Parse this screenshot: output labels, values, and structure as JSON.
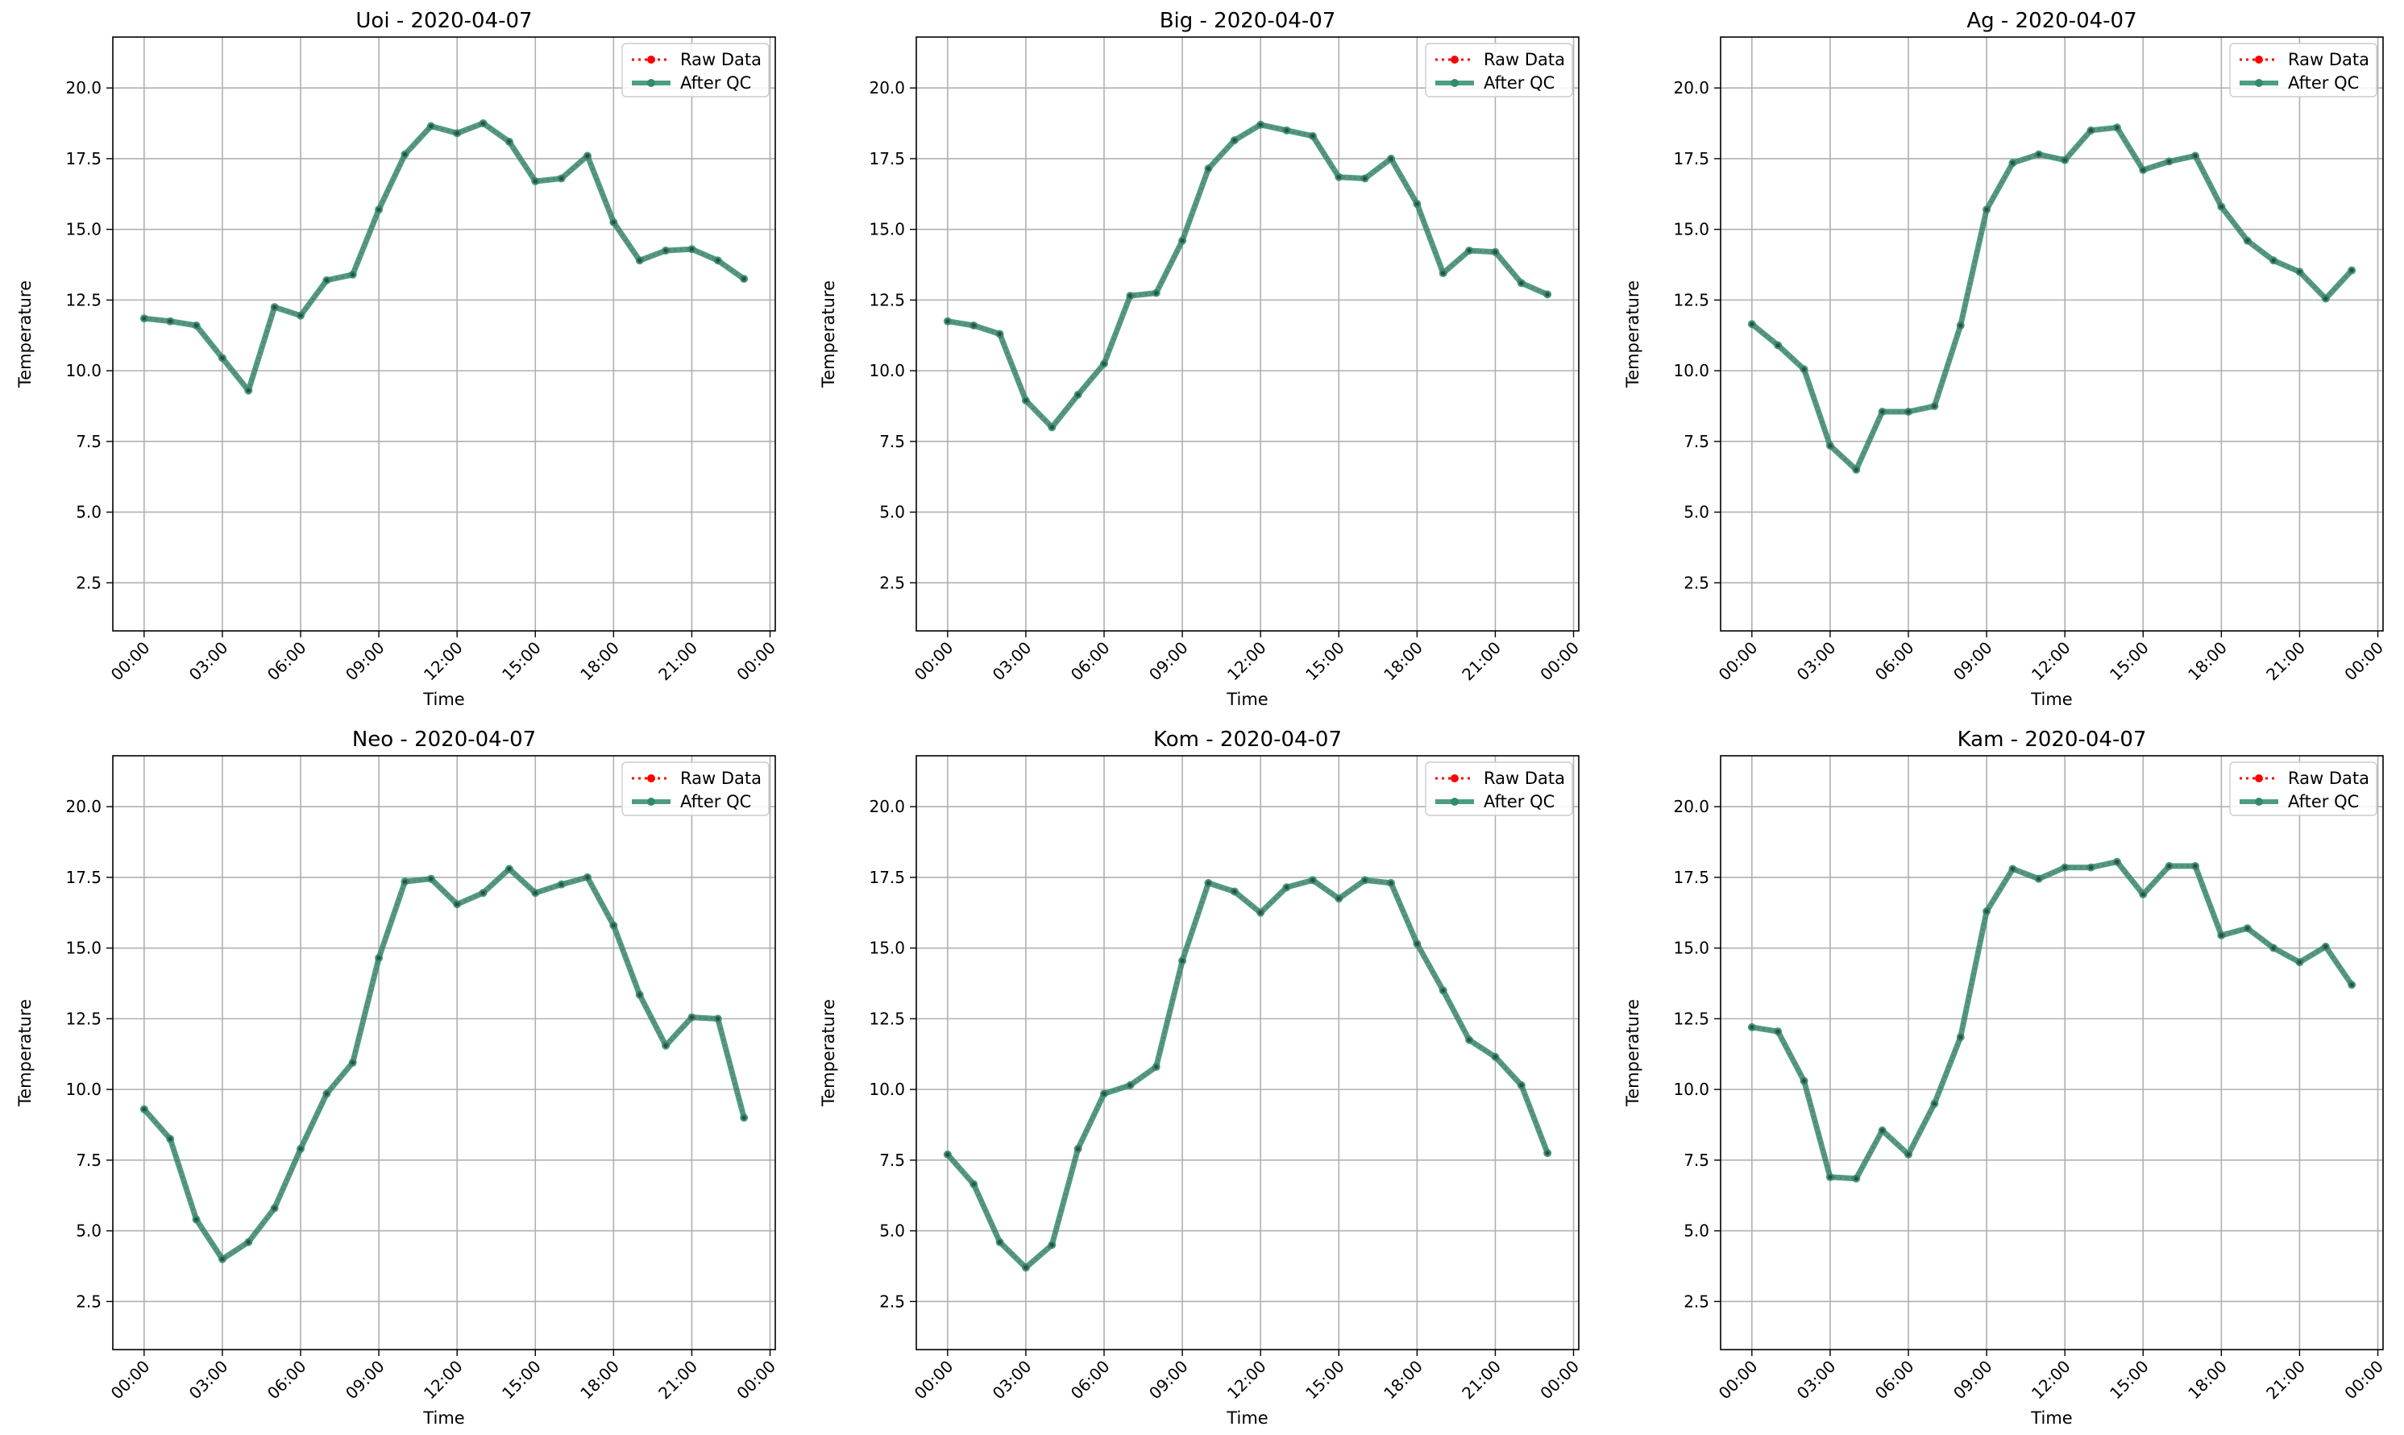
{
  "figure": {
    "colors": {
      "raw": "#ff0000",
      "qc": "#2e8b6f",
      "grid": "#b0b0b0",
      "axes": "#000000",
      "background": "#ffffff"
    }
  },
  "chart_data": [
    {
      "type": "line",
      "title": "Uoi - 2020-04-07",
      "xlabel": "Time",
      "ylabel": "Temperature",
      "ylim": [
        0.8,
        21.8
      ],
      "yticks": [
        2.5,
        5.0,
        7.5,
        10.0,
        12.5,
        15.0,
        17.5,
        20.0
      ],
      "xlim_hours": [
        -1.2,
        24.2
      ],
      "xticks": [
        "00:00",
        "03:00",
        "06:00",
        "09:00",
        "12:00",
        "15:00",
        "18:00",
        "21:00",
        "00:00"
      ],
      "grid": true,
      "legend": {
        "placement": "top-right",
        "entries": [
          "Raw Data",
          "After QC"
        ]
      },
      "x": [
        "00:00",
        "01:00",
        "02:00",
        "03:00",
        "04:00",
        "05:00",
        "06:00",
        "07:00",
        "08:00",
        "09:00",
        "10:00",
        "11:00",
        "12:00",
        "13:00",
        "14:00",
        "15:00",
        "16:00",
        "17:00",
        "18:00",
        "19:00",
        "20:00",
        "21:00",
        "22:00",
        "23:00"
      ],
      "series": [
        {
          "name": "Raw Data",
          "style": "dotted-marker",
          "values": [
            11.85,
            11.75,
            11.6,
            10.45,
            9.3,
            12.25,
            11.95,
            13.2,
            13.4,
            15.7,
            17.65,
            18.65,
            18.4,
            18.75,
            18.1,
            16.7,
            16.8,
            17.6,
            15.25,
            13.9,
            14.25,
            14.3,
            13.9,
            13.25
          ]
        },
        {
          "name": "After QC",
          "style": "solid-marker",
          "values": [
            11.85,
            11.75,
            11.6,
            10.45,
            9.3,
            12.25,
            11.95,
            13.2,
            13.4,
            15.7,
            17.65,
            18.65,
            18.4,
            18.75,
            18.1,
            16.7,
            16.8,
            17.6,
            15.25,
            13.9,
            14.25,
            14.3,
            13.9,
            13.25
          ]
        }
      ]
    },
    {
      "type": "line",
      "title": "Big - 2020-04-07",
      "xlabel": "Time",
      "ylabel": "Temperature",
      "ylim": [
        0.8,
        21.8
      ],
      "yticks": [
        2.5,
        5.0,
        7.5,
        10.0,
        12.5,
        15.0,
        17.5,
        20.0
      ],
      "xlim_hours": [
        -1.2,
        24.2
      ],
      "xticks": [
        "00:00",
        "03:00",
        "06:00",
        "09:00",
        "12:00",
        "15:00",
        "18:00",
        "21:00",
        "00:00"
      ],
      "grid": true,
      "legend": {
        "placement": "top-right",
        "entries": [
          "Raw Data",
          "After QC"
        ]
      },
      "x": [
        "00:00",
        "01:00",
        "02:00",
        "03:00",
        "04:00",
        "05:00",
        "06:00",
        "07:00",
        "08:00",
        "09:00",
        "10:00",
        "11:00",
        "12:00",
        "13:00",
        "14:00",
        "15:00",
        "16:00",
        "17:00",
        "18:00",
        "19:00",
        "20:00",
        "21:00",
        "22:00",
        "23:00"
      ],
      "series": [
        {
          "name": "Raw Data",
          "style": "dotted-marker",
          "values": [
            11.75,
            11.6,
            11.3,
            8.95,
            8.0,
            9.15,
            10.25,
            12.65,
            12.75,
            14.6,
            17.15,
            18.15,
            18.7,
            18.5,
            18.3,
            16.85,
            16.8,
            17.5,
            15.9,
            13.45,
            14.25,
            14.2,
            13.1,
            12.7
          ]
        },
        {
          "name": "After QC",
          "style": "solid-marker",
          "values": [
            11.75,
            11.6,
            11.3,
            8.95,
            8.0,
            9.15,
            10.25,
            12.65,
            12.75,
            14.6,
            17.15,
            18.15,
            18.7,
            18.5,
            18.3,
            16.85,
            16.8,
            17.5,
            15.9,
            13.45,
            14.25,
            14.2,
            13.1,
            12.7
          ]
        }
      ]
    },
    {
      "type": "line",
      "title": "Ag - 2020-04-07",
      "xlabel": "Time",
      "ylabel": "Temperature",
      "ylim": [
        0.8,
        21.8
      ],
      "yticks": [
        2.5,
        5.0,
        7.5,
        10.0,
        12.5,
        15.0,
        17.5,
        20.0
      ],
      "xlim_hours": [
        -1.2,
        24.2
      ],
      "xticks": [
        "00:00",
        "03:00",
        "06:00",
        "09:00",
        "12:00",
        "15:00",
        "18:00",
        "21:00",
        "00:00"
      ],
      "grid": true,
      "legend": {
        "placement": "top-right",
        "entries": [
          "Raw Data",
          "After QC"
        ]
      },
      "x": [
        "00:00",
        "01:00",
        "02:00",
        "03:00",
        "04:00",
        "05:00",
        "06:00",
        "07:00",
        "08:00",
        "09:00",
        "10:00",
        "11:00",
        "12:00",
        "13:00",
        "14:00",
        "15:00",
        "16:00",
        "17:00",
        "18:00",
        "19:00",
        "20:00",
        "21:00",
        "22:00",
        "23:00"
      ],
      "series": [
        {
          "name": "Raw Data",
          "style": "dotted-marker",
          "values": [
            11.65,
            10.9,
            10.05,
            7.35,
            6.5,
            8.55,
            8.55,
            8.75,
            11.6,
            15.7,
            17.35,
            17.65,
            17.45,
            18.5,
            18.6,
            17.1,
            17.4,
            17.6,
            15.8,
            14.6,
            13.9,
            13.5,
            12.55,
            13.55
          ]
        },
        {
          "name": "After QC",
          "style": "solid-marker",
          "values": [
            11.65,
            10.9,
            10.05,
            7.35,
            6.5,
            8.55,
            8.55,
            8.75,
            11.6,
            15.7,
            17.35,
            17.65,
            17.45,
            18.5,
            18.6,
            17.1,
            17.4,
            17.6,
            15.8,
            14.6,
            13.9,
            13.5,
            12.55,
            13.55
          ]
        }
      ]
    },
    {
      "type": "line",
      "title": "Neo - 2020-04-07",
      "xlabel": "Time",
      "ylabel": "Temperature",
      "ylim": [
        0.8,
        21.8
      ],
      "yticks": [
        2.5,
        5.0,
        7.5,
        10.0,
        12.5,
        15.0,
        17.5,
        20.0
      ],
      "xlim_hours": [
        -1.2,
        24.2
      ],
      "xticks": [
        "00:00",
        "03:00",
        "06:00",
        "09:00",
        "12:00",
        "15:00",
        "18:00",
        "21:00",
        "00:00"
      ],
      "grid": true,
      "legend": {
        "placement": "top-right",
        "entries": [
          "Raw Data",
          "After QC"
        ]
      },
      "x": [
        "00:00",
        "01:00",
        "02:00",
        "03:00",
        "04:00",
        "05:00",
        "06:00",
        "07:00",
        "08:00",
        "09:00",
        "10:00",
        "11:00",
        "12:00",
        "13:00",
        "14:00",
        "15:00",
        "16:00",
        "17:00",
        "18:00",
        "19:00",
        "20:00",
        "21:00",
        "22:00",
        "23:00"
      ],
      "series": [
        {
          "name": "Raw Data",
          "style": "dotted-marker",
          "values": [
            9.3,
            8.25,
            5.4,
            4.0,
            4.6,
            5.8,
            7.9,
            9.85,
            10.95,
            14.65,
            17.35,
            17.45,
            16.55,
            16.95,
            17.8,
            16.95,
            17.25,
            17.5,
            15.8,
            13.35,
            11.55,
            12.55,
            12.5,
            9.0
          ]
        },
        {
          "name": "After QC",
          "style": "solid-marker",
          "values": [
            9.3,
            8.25,
            5.4,
            4.0,
            4.6,
            5.8,
            7.9,
            9.85,
            10.95,
            14.65,
            17.35,
            17.45,
            16.55,
            16.95,
            17.8,
            16.95,
            17.25,
            17.5,
            15.8,
            13.35,
            11.55,
            12.55,
            12.5,
            9.0
          ]
        }
      ]
    },
    {
      "type": "line",
      "title": "Kom - 2020-04-07",
      "xlabel": "Time",
      "ylabel": "Temperature",
      "ylim": [
        0.8,
        21.8
      ],
      "yticks": [
        2.5,
        5.0,
        7.5,
        10.0,
        12.5,
        15.0,
        17.5,
        20.0
      ],
      "xlim_hours": [
        -1.2,
        24.2
      ],
      "xticks": [
        "00:00",
        "03:00",
        "06:00",
        "09:00",
        "12:00",
        "15:00",
        "18:00",
        "21:00",
        "00:00"
      ],
      "grid": true,
      "legend": {
        "placement": "top-right",
        "entries": [
          "Raw Data",
          "After QC"
        ]
      },
      "x": [
        "00:00",
        "01:00",
        "02:00",
        "03:00",
        "04:00",
        "05:00",
        "06:00",
        "07:00",
        "08:00",
        "09:00",
        "10:00",
        "11:00",
        "12:00",
        "13:00",
        "14:00",
        "15:00",
        "16:00",
        "17:00",
        "18:00",
        "19:00",
        "20:00",
        "21:00",
        "22:00",
        "23:00"
      ],
      "series": [
        {
          "name": "Raw Data",
          "style": "dotted-marker",
          "values": [
            7.7,
            6.65,
            4.6,
            3.7,
            4.5,
            7.9,
            9.85,
            10.15,
            10.8,
            14.55,
            17.3,
            17.0,
            16.25,
            17.15,
            17.4,
            16.75,
            17.4,
            17.3,
            15.15,
            13.5,
            11.75,
            11.15,
            10.15,
            7.75
          ]
        },
        {
          "name": "After QC",
          "style": "solid-marker",
          "values": [
            7.7,
            6.65,
            4.6,
            3.7,
            4.5,
            7.9,
            9.85,
            10.15,
            10.8,
            14.55,
            17.3,
            17.0,
            16.25,
            17.15,
            17.4,
            16.75,
            17.4,
            17.3,
            15.15,
            13.5,
            11.75,
            11.15,
            10.15,
            7.75
          ]
        }
      ]
    },
    {
      "type": "line",
      "title": "Kam - 2020-04-07",
      "xlabel": "Time",
      "ylabel": "Temperature",
      "ylim": [
        0.8,
        21.8
      ],
      "yticks": [
        2.5,
        5.0,
        7.5,
        10.0,
        12.5,
        15.0,
        17.5,
        20.0
      ],
      "xlim_hours": [
        -1.2,
        24.2
      ],
      "xticks": [
        "00:00",
        "03:00",
        "06:00",
        "09:00",
        "12:00",
        "15:00",
        "18:00",
        "21:00",
        "00:00"
      ],
      "grid": true,
      "legend": {
        "placement": "top-right",
        "entries": [
          "Raw Data",
          "After QC"
        ]
      },
      "x": [
        "00:00",
        "01:00",
        "02:00",
        "03:00",
        "04:00",
        "05:00",
        "06:00",
        "07:00",
        "08:00",
        "09:00",
        "10:00",
        "11:00",
        "12:00",
        "13:00",
        "14:00",
        "15:00",
        "16:00",
        "17:00",
        "18:00",
        "19:00",
        "20:00",
        "21:00",
        "22:00",
        "23:00"
      ],
      "series": [
        {
          "name": "Raw Data",
          "style": "dotted-marker",
          "values": [
            12.2,
            12.05,
            10.3,
            6.9,
            6.85,
            8.55,
            7.7,
            9.5,
            11.85,
            16.3,
            17.8,
            17.45,
            17.85,
            17.85,
            18.05,
            16.9,
            17.9,
            17.9,
            15.45,
            15.7,
            15.0,
            14.5,
            15.05,
            13.7
          ]
        },
        {
          "name": "After QC",
          "style": "solid-marker",
          "values": [
            12.2,
            12.05,
            10.3,
            6.9,
            6.85,
            8.55,
            7.7,
            9.5,
            11.85,
            16.3,
            17.8,
            17.45,
            17.85,
            17.85,
            18.05,
            16.9,
            17.9,
            17.9,
            15.45,
            15.7,
            15.0,
            14.5,
            15.05,
            13.7
          ]
        }
      ]
    }
  ]
}
